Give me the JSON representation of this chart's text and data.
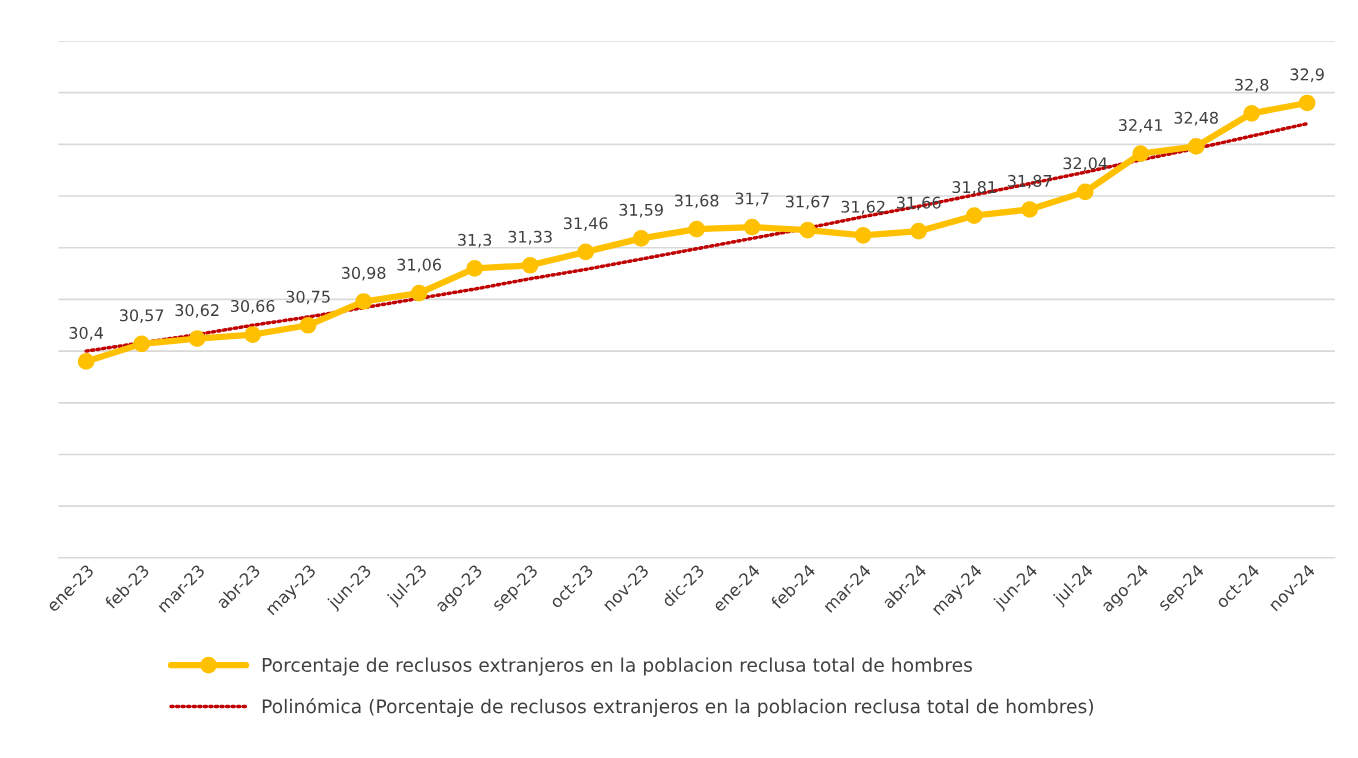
{
  "chart_data": {
    "type": "line",
    "categories": [
      "ene-23",
      "feb-23",
      "mar-23",
      "abr-23",
      "may-23",
      "jun-23",
      "jul-23",
      "ago-23",
      "sep-23",
      "oct-23",
      "nov-23",
      "dic-23",
      "ene-24",
      "feb-24",
      "mar-24",
      "abr-24",
      "may-24",
      "jun-24",
      "jul-24",
      "ago-24",
      "sep-24",
      "oct-24",
      "nov-24"
    ],
    "series": [
      {
        "name": "Porcentaje de reclusos extranjeros en la poblacion reclusa total de hombres",
        "color": "#ffc000",
        "marker": "circle",
        "line_style": "solid",
        "values": [
          30.4,
          30.57,
          30.62,
          30.66,
          30.75,
          30.98,
          31.06,
          31.3,
          31.33,
          31.46,
          31.59,
          31.68,
          31.7,
          31.67,
          31.62,
          31.66,
          31.81,
          31.87,
          32.04,
          32.41,
          32.48,
          32.8,
          32.9
        ],
        "value_labels": [
          "30,4",
          "30,57",
          "30,62",
          "30,66",
          "30,75",
          "30,98",
          "31,06",
          "31,3",
          "31,33",
          "31,46",
          "31,59",
          "31,68",
          "31,7",
          "31,67",
          "31,62",
          "31,66",
          "31,81",
          "31,87",
          "32,04",
          "32,41",
          "32,48",
          "32,8",
          "32,9"
        ]
      },
      {
        "name": "Polinómica (Porcentaje de reclusos extranjeros en la poblacion reclusa total de hombres)",
        "color": "#c00000",
        "type": "line",
        "marker": "none",
        "line_style": "dotted",
        "values": [
          30.5,
          30.58,
          30.66,
          30.75,
          30.83,
          30.92,
          31.01,
          31.1,
          31.2,
          31.29,
          31.39,
          31.49,
          31.59,
          31.69,
          31.8,
          31.9,
          32.01,
          32.12,
          32.23,
          32.35,
          32.46,
          32.58,
          32.7
        ]
      }
    ],
    "ylim": [
      28.5,
      33.5
    ],
    "yticks": [
      {
        "value": 28.5,
        "label": null
      },
      {
        "value": 29,
        "label": null
      },
      {
        "value": 29.5,
        "label": null
      },
      {
        "value": 30,
        "label": null
      },
      {
        "value": 30.5,
        "label": null
      },
      {
        "value": 31,
        "label": null
      },
      {
        "value": 31.5,
        "label": null
      },
      {
        "value": 32,
        "label": null
      },
      {
        "value": 32.5,
        "label": null
      },
      {
        "value": 33,
        "label": null
      },
      {
        "value": 33.5,
        "label": null
      }
    ],
    "tick_labels": "x",
    "grid": "y",
    "legend": "bottom"
  }
}
